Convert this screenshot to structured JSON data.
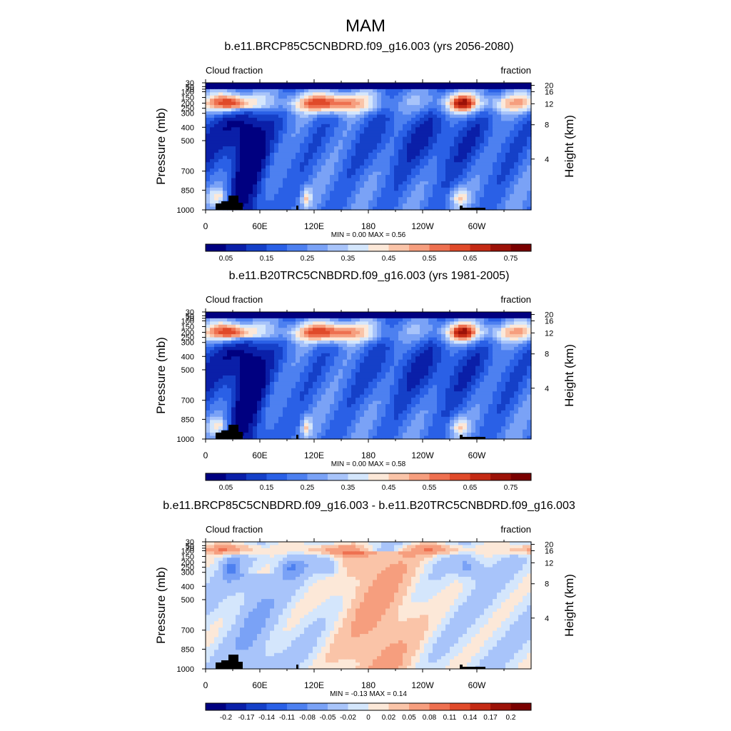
{
  "figure": {
    "title": "MAM"
  },
  "colors": {
    "nine_level": [
      "#000080",
      "#0a1fa8",
      "#1540c8",
      "#2a60e6",
      "#4d80f0",
      "#7aa2f6",
      "#a8c4fa",
      "#d4e6fc",
      "#fce8d8",
      "#fac4a8",
      "#f69e7e",
      "#ee7050",
      "#e04a2a",
      "#c42a14",
      "#9c1208",
      "#7a0000"
    ]
  },
  "chart_data": [
    {
      "type": "heatmap",
      "title": "b.e11.BRCP85C5CNBDRD.f09_g16.003 (yrs 2056-2080)",
      "left_label": "Cloud fraction",
      "right_label": "fraction",
      "ylabel": "Pressure (mb)",
      "ylabel_right": "Height (km)",
      "x_ticks": [
        "0",
        "60E",
        "120E",
        "180",
        "120W",
        "60W"
      ],
      "x_range": [
        0,
        360
      ],
      "y_ticks": [
        "30",
        "50",
        "70",
        "100",
        "150",
        "200",
        "250",
        "300",
        "400",
        "500",
        "700",
        "850",
        "1000"
      ],
      "y_right_ticks": [
        "20",
        "16",
        "12",
        "8",
        "4"
      ],
      "minmax": "MIN =   0.00  MAX =   0.56",
      "colorbar_labels": [
        "0.05",
        "0.15",
        "0.25",
        "0.35",
        "0.45",
        "0.55",
        "0.65",
        "0.75"
      ],
      "colorbar_levels": [
        0.05,
        0.1,
        0.15,
        0.2,
        0.25,
        0.3,
        0.35,
        0.4,
        0.45,
        0.5,
        0.55,
        0.6,
        0.65,
        0.7,
        0.75
      ],
      "min": 0.0,
      "max": 0.56
    },
    {
      "type": "heatmap",
      "title": "b.e11.B20TRC5CNBDRD.f09_g16.003 (yrs 1981-2005)",
      "left_label": "Cloud fraction",
      "right_label": "fraction",
      "ylabel": "Pressure (mb)",
      "ylabel_right": "Height (km)",
      "x_ticks": [
        "0",
        "60E",
        "120E",
        "180",
        "120W",
        "60W"
      ],
      "x_range": [
        0,
        360
      ],
      "y_ticks": [
        "30",
        "50",
        "70",
        "100",
        "150",
        "200",
        "250",
        "300",
        "400",
        "500",
        "700",
        "850",
        "1000"
      ],
      "y_right_ticks": [
        "20",
        "16",
        "12",
        "8",
        "4"
      ],
      "minmax": "MIN =   0.00  MAX =   0.58",
      "colorbar_labels": [
        "0.05",
        "0.15",
        "0.25",
        "0.35",
        "0.45",
        "0.55",
        "0.65",
        "0.75"
      ],
      "colorbar_levels": [
        0.05,
        0.1,
        0.15,
        0.2,
        0.25,
        0.3,
        0.35,
        0.4,
        0.45,
        0.5,
        0.55,
        0.6,
        0.65,
        0.7,
        0.75
      ],
      "min": 0.0,
      "max": 0.58
    },
    {
      "type": "heatmap",
      "title": "b.e11.BRCP85C5CNBDRD.f09_g16.003 - b.e11.B20TRC5CNBDRD.f09_g16.003",
      "left_label": "Cloud fraction",
      "right_label": "fraction",
      "ylabel": "Pressure (mb)",
      "ylabel_right": "Height (km)",
      "x_ticks": [
        "0",
        "60E",
        "120E",
        "180",
        "120W",
        "60W"
      ],
      "x_range": [
        0,
        360
      ],
      "y_ticks": [
        "30",
        "50",
        "70",
        "100",
        "150",
        "200",
        "250",
        "300",
        "400",
        "500",
        "700",
        "850",
        "1000"
      ],
      "y_right_ticks": [
        "20",
        "16",
        "12",
        "8",
        "4"
      ],
      "minmax": "MIN =  -0.13  MAX =   0.14",
      "colorbar_labels": [
        "-0.2",
        "-0.17",
        "-0.14",
        "-0.11",
        "-0.08",
        "-0.05",
        "-0.02",
        "0",
        "0.02",
        "0.05",
        "0.08",
        "0.11",
        "0.14",
        "0.17",
        "0.2"
      ],
      "colorbar_levels": [
        -0.2,
        -0.17,
        -0.14,
        -0.11,
        -0.08,
        -0.05,
        -0.02,
        0,
        0.02,
        0.05,
        0.08,
        0.11,
        0.14,
        0.17,
        0.2
      ],
      "min": -0.13,
      "max": 0.14
    }
  ]
}
